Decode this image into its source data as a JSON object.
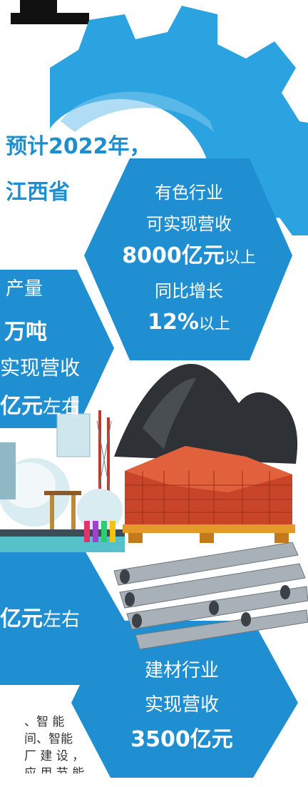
{
  "header": {
    "headline_line1": "预计2022年，",
    "headline_line2": "江西省"
  },
  "hex_nonferrous": {
    "line1": "有色行业",
    "line2": "可实现营收",
    "value": "8000亿元",
    "value_suffix": "以上",
    "line4": "同比增长",
    "growth": "12%",
    "growth_suffix": "以上"
  },
  "hex_left_middle": {
    "line1": "产量",
    "line2": "万吨",
    "line3": "实现营收",
    "value": "亿元",
    "value_suffix": "左右"
  },
  "hex_left_lower": {
    "value": "亿元",
    "value_suffix": "左右"
  },
  "hex_building_materials": {
    "line1": "建材行业",
    "line2": "实现营收",
    "value": "3500亿元"
  },
  "body_text": {
    "line1": "、智 能",
    "line2": "间、智能",
    "line3": "厂 建 设 ，",
    "line4": "应 用 节 能"
  },
  "colors": {
    "primary_blue": "#1d8fd0",
    "hex_blue": "#1f8fd2",
    "gear_blue": "#2aa3e0",
    "brick_red": "#d2492a",
    "pallet_orange": "#e39a2a"
  }
}
